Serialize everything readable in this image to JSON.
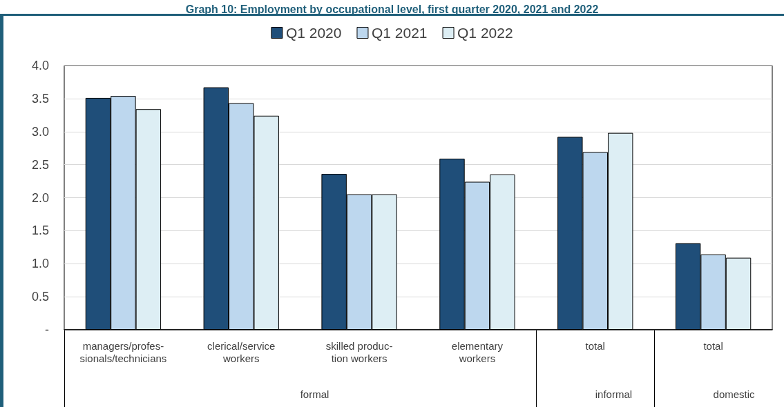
{
  "chart_data": {
    "type": "bar",
    "title": "Graph 10: Employment by occupational level, first quarter 2020, 2021 and 2022",
    "categories": [
      "managers/profes-\nsionals/technicians",
      "clerical/service\nworkers",
      "skilled produc-\ntion workers",
      "elementary\nworkers",
      "total",
      "total"
    ],
    "series": [
      {
        "name": "Q1 2020",
        "color": "#1f4e79",
        "values": [
          3.51,
          3.67,
          2.36,
          2.59,
          2.92,
          1.31
        ]
      },
      {
        "name": "Q1 2021",
        "color": "#bdd7ee",
        "values": [
          3.54,
          3.43,
          2.05,
          2.24,
          2.69,
          1.14
        ]
      },
      {
        "name": "Q1 2022",
        "color": "#ddeef4",
        "values": [
          3.34,
          3.24,
          2.05,
          2.35,
          2.98,
          1.09
        ]
      }
    ],
    "ylim": [
      0,
      4
    ],
    "yticks": [
      {
        "value": 0,
        "label": "-"
      },
      {
        "value": 0.5,
        "label": "0.5"
      },
      {
        "value": 1,
        "label": "1.0"
      },
      {
        "value": 1.5,
        "label": "1.5"
      },
      {
        "value": 2,
        "label": "2.0"
      },
      {
        "value": 2.5,
        "label": "2.5"
      },
      {
        "value": 3,
        "label": "3.0"
      },
      {
        "value": 3.5,
        "label": "3.5"
      },
      {
        "value": 4,
        "label": "4.0"
      }
    ],
    "grid": "y",
    "legend": "top",
    "annotations": [
      "formal",
      "informal",
      "domestic"
    ]
  }
}
